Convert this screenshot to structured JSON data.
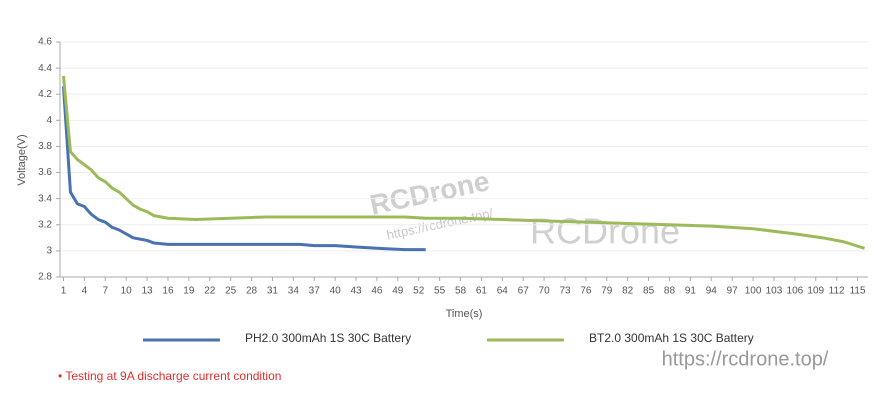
{
  "chart_data": {
    "type": "line",
    "x_label": "Time(s)",
    "y_label": "Voltage(V)",
    "x": [
      1,
      2,
      3,
      4,
      5,
      6,
      7,
      8,
      9,
      10,
      11,
      12,
      13,
      14,
      16,
      20,
      25,
      30,
      35,
      37,
      40,
      43,
      46,
      50,
      53,
      58,
      64,
      70,
      76,
      82,
      88,
      94,
      100,
      106,
      110,
      113,
      116
    ],
    "series": [
      {
        "name": "PH2.0 300mAh 1S 30C Battery",
        "color": "#4a72b0",
        "values": [
          4.26,
          3.45,
          3.36,
          3.34,
          3.28,
          3.24,
          3.22,
          3.18,
          3.16,
          3.13,
          3.1,
          3.09,
          3.08,
          3.06,
          3.05,
          3.05,
          3.05,
          3.05,
          3.05,
          3.04,
          3.04,
          3.03,
          3.02,
          3.01,
          3.01,
          null,
          null,
          null,
          null,
          null,
          null,
          null,
          null,
          null,
          null,
          null,
          null
        ]
      },
      {
        "name": "BT2.0 300mAh 1S 30C Battery",
        "color": "#9bbb59",
        "values": [
          4.34,
          3.76,
          3.7,
          3.66,
          3.62,
          3.56,
          3.53,
          3.48,
          3.45,
          3.4,
          3.35,
          3.32,
          3.3,
          3.27,
          3.25,
          3.24,
          3.25,
          3.26,
          3.26,
          3.26,
          3.26,
          3.26,
          3.26,
          3.26,
          3.25,
          3.25,
          3.24,
          3.23,
          3.22,
          3.21,
          3.2,
          3.19,
          3.17,
          3.13,
          3.1,
          3.07,
          3.02
        ]
      }
    ],
    "xlim": [
      0.5,
      116.5
    ],
    "xticks": [
      1,
      4,
      7,
      10,
      13,
      16,
      19,
      22,
      25,
      28,
      31,
      34,
      37,
      40,
      43,
      46,
      49,
      52,
      55,
      58,
      61,
      64,
      67,
      70,
      73,
      76,
      79,
      82,
      85,
      88,
      91,
      94,
      97,
      100,
      103,
      106,
      109,
      112,
      115
    ],
    "ylim": [
      2.8,
      4.6
    ],
    "yticks": [
      2.8,
      3,
      3.2,
      3.4,
      3.6,
      3.8,
      4,
      4.2,
      4.4,
      4.6
    ],
    "grid": true,
    "footnote": "• Testing at 9A discharge current condition",
    "watermarks": [
      "RCDrone",
      "https://rcdrone.top/",
      "RCDrone",
      "https://rcdrone.top/"
    ]
  }
}
